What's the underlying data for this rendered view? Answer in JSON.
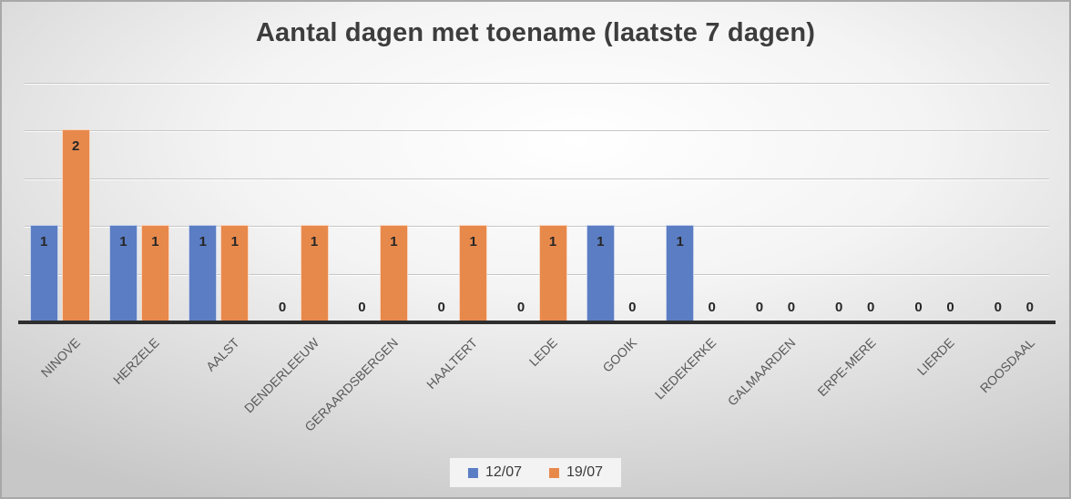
{
  "chart_data": {
    "type": "bar",
    "title": "Aantal dagen met toename (laatste 7 dagen)",
    "categories": [
      "NINOVE",
      "HERZELE",
      "AALST",
      "DENDERLEEUW",
      "GERAARDSBERGEN",
      "HAALTERT",
      "LEDE",
      "GOOIK",
      "LIEDEKERKE",
      "GALMAARDEN",
      "ERPE-MERE",
      "LIERDE",
      "ROOSDAAL"
    ],
    "series": [
      {
        "name": "12/07",
        "color": "#5b7dc3",
        "values": [
          1,
          1,
          1,
          0,
          0,
          0,
          0,
          1,
          1,
          0,
          0,
          0,
          0
        ]
      },
      {
        "name": "19/07",
        "color": "#e8894c",
        "values": [
          2,
          1,
          1,
          1,
          1,
          1,
          1,
          0,
          0,
          0,
          0,
          0,
          0
        ]
      }
    ],
    "xlabel": "",
    "ylabel": "",
    "ylim": [
      0,
      2.5
    ],
    "grid_interval": 0.5,
    "grid": "on",
    "legend_position": "bottom",
    "data_labels": "inside-end"
  },
  "colors": {
    "title": "#3d3d3d",
    "data_label": "#262626",
    "category_label": "#595959",
    "axis_line": "#2e2e2e",
    "gridline": "#c6c6c6",
    "legend_bg": "#f3f3f3",
    "legend_text": "#3a3a3a",
    "series_blue": "#5b7dc3",
    "series_orange": "#e8894c"
  }
}
